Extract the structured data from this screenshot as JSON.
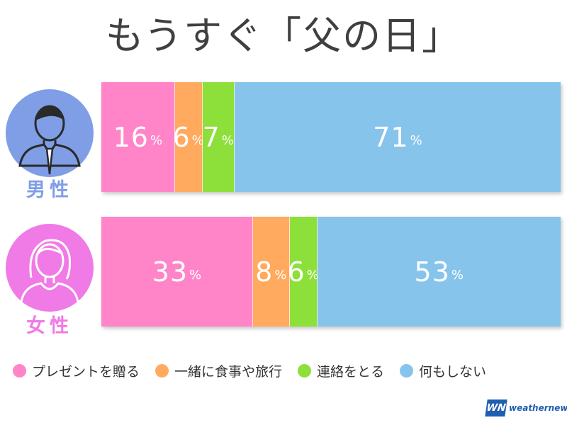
{
  "title": "もうすぐ「父の日」",
  "pct_symbol": "%",
  "colors": {
    "present": "#ff85c8",
    "meal_trip": "#ffaa5e",
    "contact": "#8ddf3a",
    "nothing": "#86c4ec",
    "male_avatar": "#7f9ee6",
    "female_avatar": "#f07ae6"
  },
  "icons": {
    "male": "male-person-icon",
    "female": "female-person-icon"
  },
  "chart_data": {
    "type": "bar",
    "orientation": "horizontal",
    "stacked": true,
    "title": "もうすぐ「父の日」",
    "categories": [
      "男性",
      "女性"
    ],
    "series": [
      {
        "name": "プレゼントを贈る",
        "values": [
          16,
          33
        ],
        "color": "#ff85c8"
      },
      {
        "name": "一緒に食事や旅行",
        "values": [
          6,
          8
        ],
        "color": "#ffaa5e"
      },
      {
        "name": "連絡をとる",
        "values": [
          7,
          6
        ],
        "color": "#8ddf3a"
      },
      {
        "name": "何もしない",
        "values": [
          71,
          53
        ],
        "color": "#86c4ec"
      }
    ],
    "unit": "%",
    "legend": "bottom",
    "grid": false
  },
  "logo": {
    "mark": "WN",
    "text": "weathernews"
  }
}
